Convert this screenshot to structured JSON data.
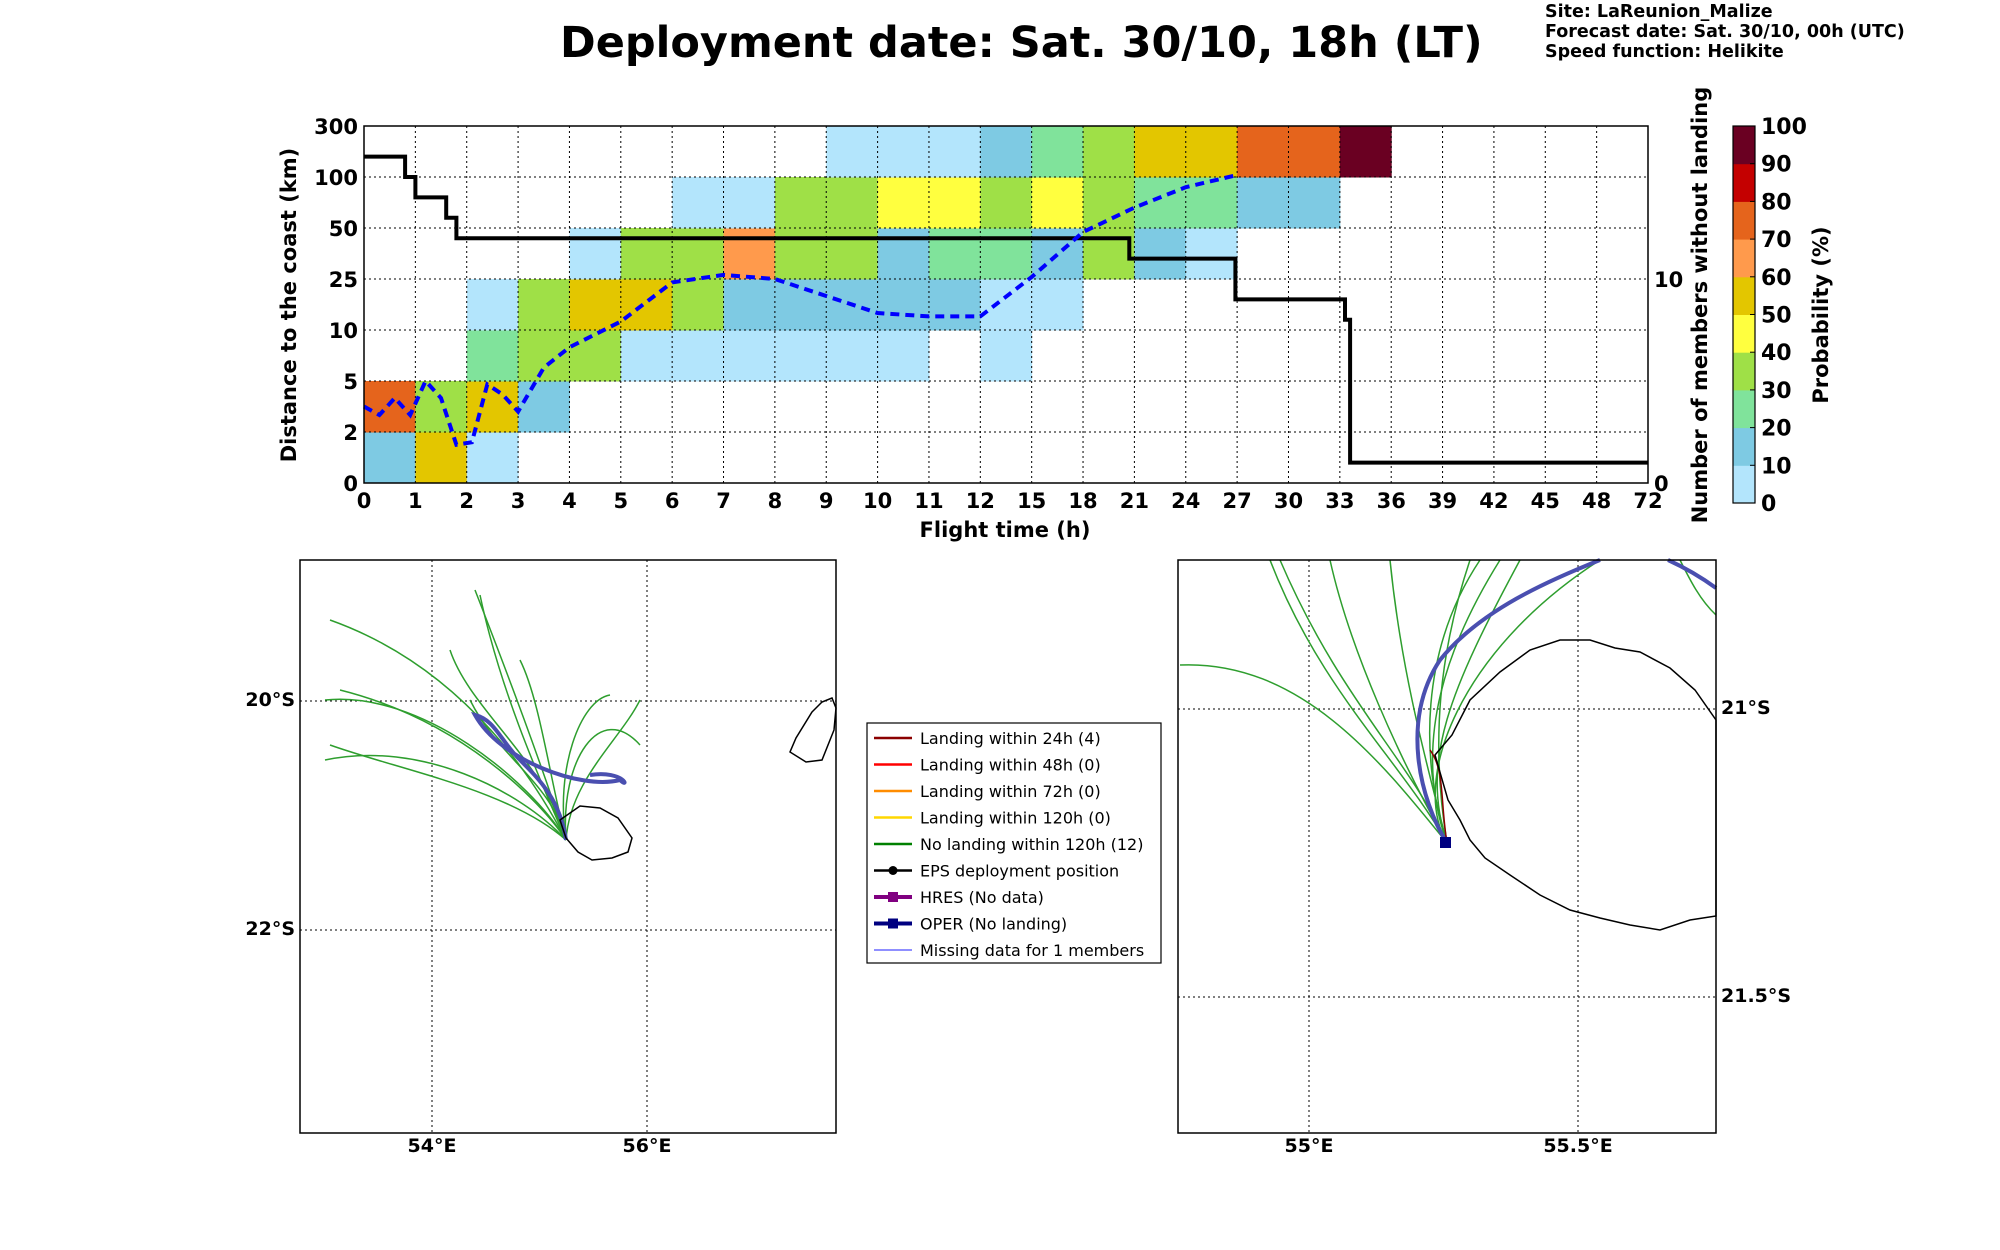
{
  "figure": {
    "title": "Deployment date: Sat. 30/10, 18h (LT)",
    "site": "Site: LaReunion_Malize",
    "forecast_date": "Forecast date: Sat. 30/10, 00h (UTC)",
    "speed_function": "Speed function: Helikite"
  },
  "colors": {
    "bin_0": "#b3e5fc",
    "bin_10": "#7ecae3",
    "bin_20": "#80e39b",
    "bin_30": "#9fe047",
    "bin_40": "#ffff3f",
    "bin_50": "#e3c600",
    "bin_60": "#ff9a4c",
    "bin_70": "#e5641c",
    "bin_80": "#e5641c",
    "bin_90": "#c40000",
    "bin_100": "#6a0022",
    "members_line": "#000000",
    "median_line": "#0000ff"
  },
  "chart_data": [
    {
      "type": "heatmap",
      "xlabel": "Flight time (h)",
      "ylabel": "Distance to the coast (km)",
      "y2label": "Number of members without landing",
      "x_ticks": [
        "0",
        "1",
        "2",
        "3",
        "4",
        "5",
        "6",
        "7",
        "8",
        "9",
        "10",
        "11",
        "12",
        "15",
        "18",
        "21",
        "24",
        "27",
        "30",
        "33",
        "36",
        "39",
        "42",
        "45",
        "48",
        "72"
      ],
      "y_ticks": [
        "0",
        "2",
        "5",
        "10",
        "25",
        "50",
        "100",
        "300"
      ],
      "y2_ticks": [
        "0",
        "10"
      ],
      "colorbar": {
        "label": "Probability (%)",
        "ticks": [
          "0",
          "10",
          "20",
          "30",
          "40",
          "50",
          "60",
          "70",
          "80",
          "90",
          "100"
        ]
      },
      "grid": true,
      "cells": [
        [
          0,
          0,
          10
        ],
        [
          0,
          1,
          70
        ],
        [
          1,
          0,
          50
        ],
        [
          1,
          1,
          30
        ],
        [
          2,
          0,
          0
        ],
        [
          2,
          1,
          50
        ],
        [
          2,
          2,
          20
        ],
        [
          2,
          3,
          0
        ],
        [
          3,
          1,
          10
        ],
        [
          3,
          2,
          30
        ],
        [
          3,
          3,
          30
        ],
        [
          4,
          2,
          30
        ],
        [
          4,
          3,
          50
        ],
        [
          4,
          4,
          0
        ],
        [
          5,
          2,
          0
        ],
        [
          5,
          3,
          50
        ],
        [
          5,
          4,
          30
        ],
        [
          6,
          2,
          0
        ],
        [
          6,
          3,
          30
        ],
        [
          6,
          4,
          30
        ],
        [
          6,
          5,
          0
        ],
        [
          7,
          2,
          0
        ],
        [
          7,
          3,
          10
        ],
        [
          7,
          4,
          60
        ],
        [
          7,
          5,
          0
        ],
        [
          8,
          2,
          0
        ],
        [
          8,
          3,
          10
        ],
        [
          8,
          4,
          30
        ],
        [
          8,
          5,
          30
        ],
        [
          9,
          2,
          0
        ],
        [
          9,
          3,
          10
        ],
        [
          9,
          4,
          30
        ],
        [
          9,
          5,
          30
        ],
        [
          9,
          6,
          0
        ],
        [
          10,
          2,
          0
        ],
        [
          10,
          3,
          10
        ],
        [
          10,
          4,
          10
        ],
        [
          10,
          5,
          40
        ],
        [
          10,
          6,
          0
        ],
        [
          11,
          3,
          10
        ],
        [
          11,
          4,
          20
        ],
        [
          11,
          5,
          40
        ],
        [
          11,
          6,
          0
        ],
        [
          12,
          2,
          0
        ],
        [
          12,
          3,
          0
        ],
        [
          12,
          4,
          20
        ],
        [
          12,
          5,
          30
        ],
        [
          12,
          6,
          10
        ],
        [
          13,
          3,
          0
        ],
        [
          13,
          4,
          10
        ],
        [
          13,
          5,
          40
        ],
        [
          13,
          6,
          20
        ],
        [
          14,
          4,
          30
        ],
        [
          14,
          5,
          30
        ],
        [
          14,
          6,
          30
        ],
        [
          15,
          4,
          10
        ],
        [
          15,
          5,
          20
        ],
        [
          15,
          6,
          50
        ],
        [
          16,
          4,
          0
        ],
        [
          16,
          5,
          20
        ],
        [
          16,
          6,
          50
        ],
        [
          17,
          5,
          10
        ],
        [
          17,
          6,
          70
        ],
        [
          18,
          5,
          10
        ],
        [
          18,
          6,
          70
        ],
        [
          19,
          6,
          100
        ]
      ],
      "series": [
        {
          "name": "",
          "x": [
            0,
            0.8,
            0.8,
            1,
            1,
            1.6,
            1.6,
            1.8,
            1.8,
            20.7,
            20.7,
            26.9,
            26.9,
            33.3,
            33.3,
            33.6,
            33.6,
            72
          ],
          "y": [
            16,
            16,
            15,
            15,
            14,
            14,
            13,
            13,
            12,
            12,
            11,
            11,
            9,
            9,
            8,
            8,
            1,
            1
          ]
        },
        {
          "name": "",
          "x": [
            0,
            0.3,
            0.6,
            0.9,
            1.2,
            1.5,
            1.8,
            2.1,
            2.4,
            2.7,
            3,
            3.5,
            4,
            5,
            6,
            7,
            8,
            9,
            10,
            11,
            12,
            15,
            18,
            21,
            24,
            27
          ],
          "y": [
            3.5,
            3,
            4,
            3,
            5,
            4,
            1.5,
            1.6,
            4.8,
            4.2,
            3.2,
            6.3,
            8.3,
            12.5,
            24,
            27,
            25,
            20,
            15,
            14,
            14,
            26,
            48,
            70,
            90,
            108
          ]
        }
      ]
    },
    {
      "type": "map",
      "lat_ticks": [
        "20°S",
        "22°S"
      ],
      "lon_ticks": [
        "54°E",
        "56°E"
      ],
      "legend": [
        {
          "label": "Landing within 24h (4)",
          "color": "#8b0000",
          "style": "line"
        },
        {
          "label": "Landing within 48h (0)",
          "color": "#ff0000",
          "style": "line"
        },
        {
          "label": "Landing within 72h (0)",
          "color": "#ff8c00",
          "style": "line"
        },
        {
          "label": "Landing within 120h (0)",
          "color": "#ffd700",
          "style": "line"
        },
        {
          "label": "No landing within 120h (12)",
          "color": "#008000",
          "style": "line"
        },
        {
          "label": "EPS deployment position",
          "color": "#000000",
          "style": "line-dot"
        },
        {
          "label": "HRES (No data)",
          "color": "#800080",
          "style": "line-square"
        },
        {
          "label": "OPER (No landing)",
          "color": "#000080",
          "style": "line-square"
        },
        {
          "label": "Missing data for 1 members",
          "color": "#6a6aff",
          "style": "thin"
        }
      ]
    },
    {
      "type": "map",
      "lat_ticks": [
        "21°S",
        "21.5°S"
      ],
      "lon_ticks": [
        "55°E",
        "55.5°E"
      ]
    }
  ]
}
